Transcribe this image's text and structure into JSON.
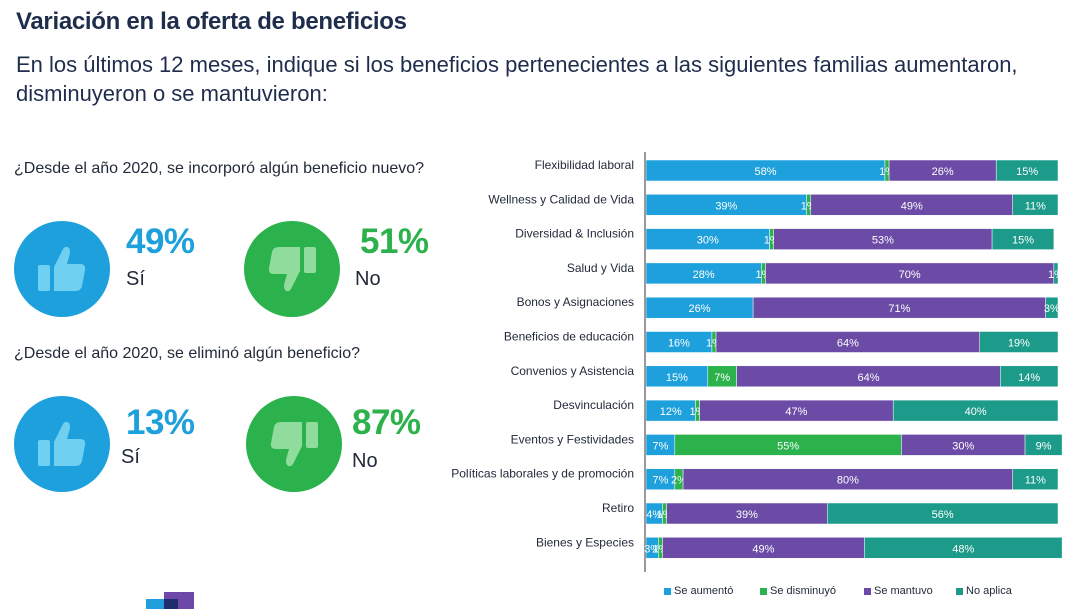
{
  "header": {
    "title": "Variación en la oferta de beneficios",
    "subtitle": "En los últimos 12 meses, indique si los beneficios pertenecientes a las siguientes familias aumentaron, disminuyeron o se mantuvieron:"
  },
  "colors": {
    "blue": "#1ea0dc",
    "green": "#2bb24c",
    "purple": "#6b4ba6",
    "teal": "#1c9a8a",
    "navy": "#1f2d4d"
  },
  "questions": [
    {
      "text": "¿Desde el año 2020, se incorporó algún beneficio nuevo?",
      "yes": {
        "value": "49%",
        "label": "Sí",
        "icon": "thumbs-up-icon"
      },
      "no": {
        "value": "51%",
        "label": "No",
        "icon": "thumbs-down-icon"
      }
    },
    {
      "text": "¿Desde el año 2020, se eliminó algún beneficio?",
      "yes": {
        "value": "13%",
        "label": "Sí",
        "icon": "thumbs-up-icon"
      },
      "no": {
        "value": "87%",
        "label": "No",
        "icon": "thumbs-down-icon"
      }
    }
  ],
  "chart_data": {
    "type": "bar",
    "orientation": "horizontal-stacked-100",
    "categories": [
      "Flexibilidad laboral",
      "Wellness y Calidad de Vida",
      "Diversidad & Inclusión",
      "Salud y Vida",
      "Bonos y Asignaciones",
      "Beneficios de educación",
      "Convenios y Asistencia",
      "Desvinculación",
      "Eventos y Festividades",
      "Políticas laborales y de promoción",
      "Retiro",
      "Bienes y Especies"
    ],
    "series": [
      {
        "name": "Se aumentó",
        "color": "#1ea0dc",
        "values": [
          58,
          39,
          30,
          28,
          26,
          16,
          15,
          12,
          7,
          7,
          4,
          3
        ]
      },
      {
        "name": "Se disminuyó",
        "color": "#2bb24c",
        "values": [
          1,
          1,
          1,
          1,
          0,
          1,
          7,
          1,
          55,
          2,
          1,
          1
        ]
      },
      {
        "name": "Se mantuvo",
        "color": "#6b4ba6",
        "values": [
          26,
          49,
          53,
          70,
          71,
          64,
          64,
          47,
          30,
          80,
          39,
          49
        ]
      },
      {
        "name": "No aplica",
        "color": "#1c9a8a",
        "values": [
          15,
          11,
          15,
          1,
          3,
          19,
          14,
          40,
          9,
          11,
          56,
          48
        ]
      }
    ],
    "value_suffix": "%",
    "legend_position": "bottom"
  }
}
